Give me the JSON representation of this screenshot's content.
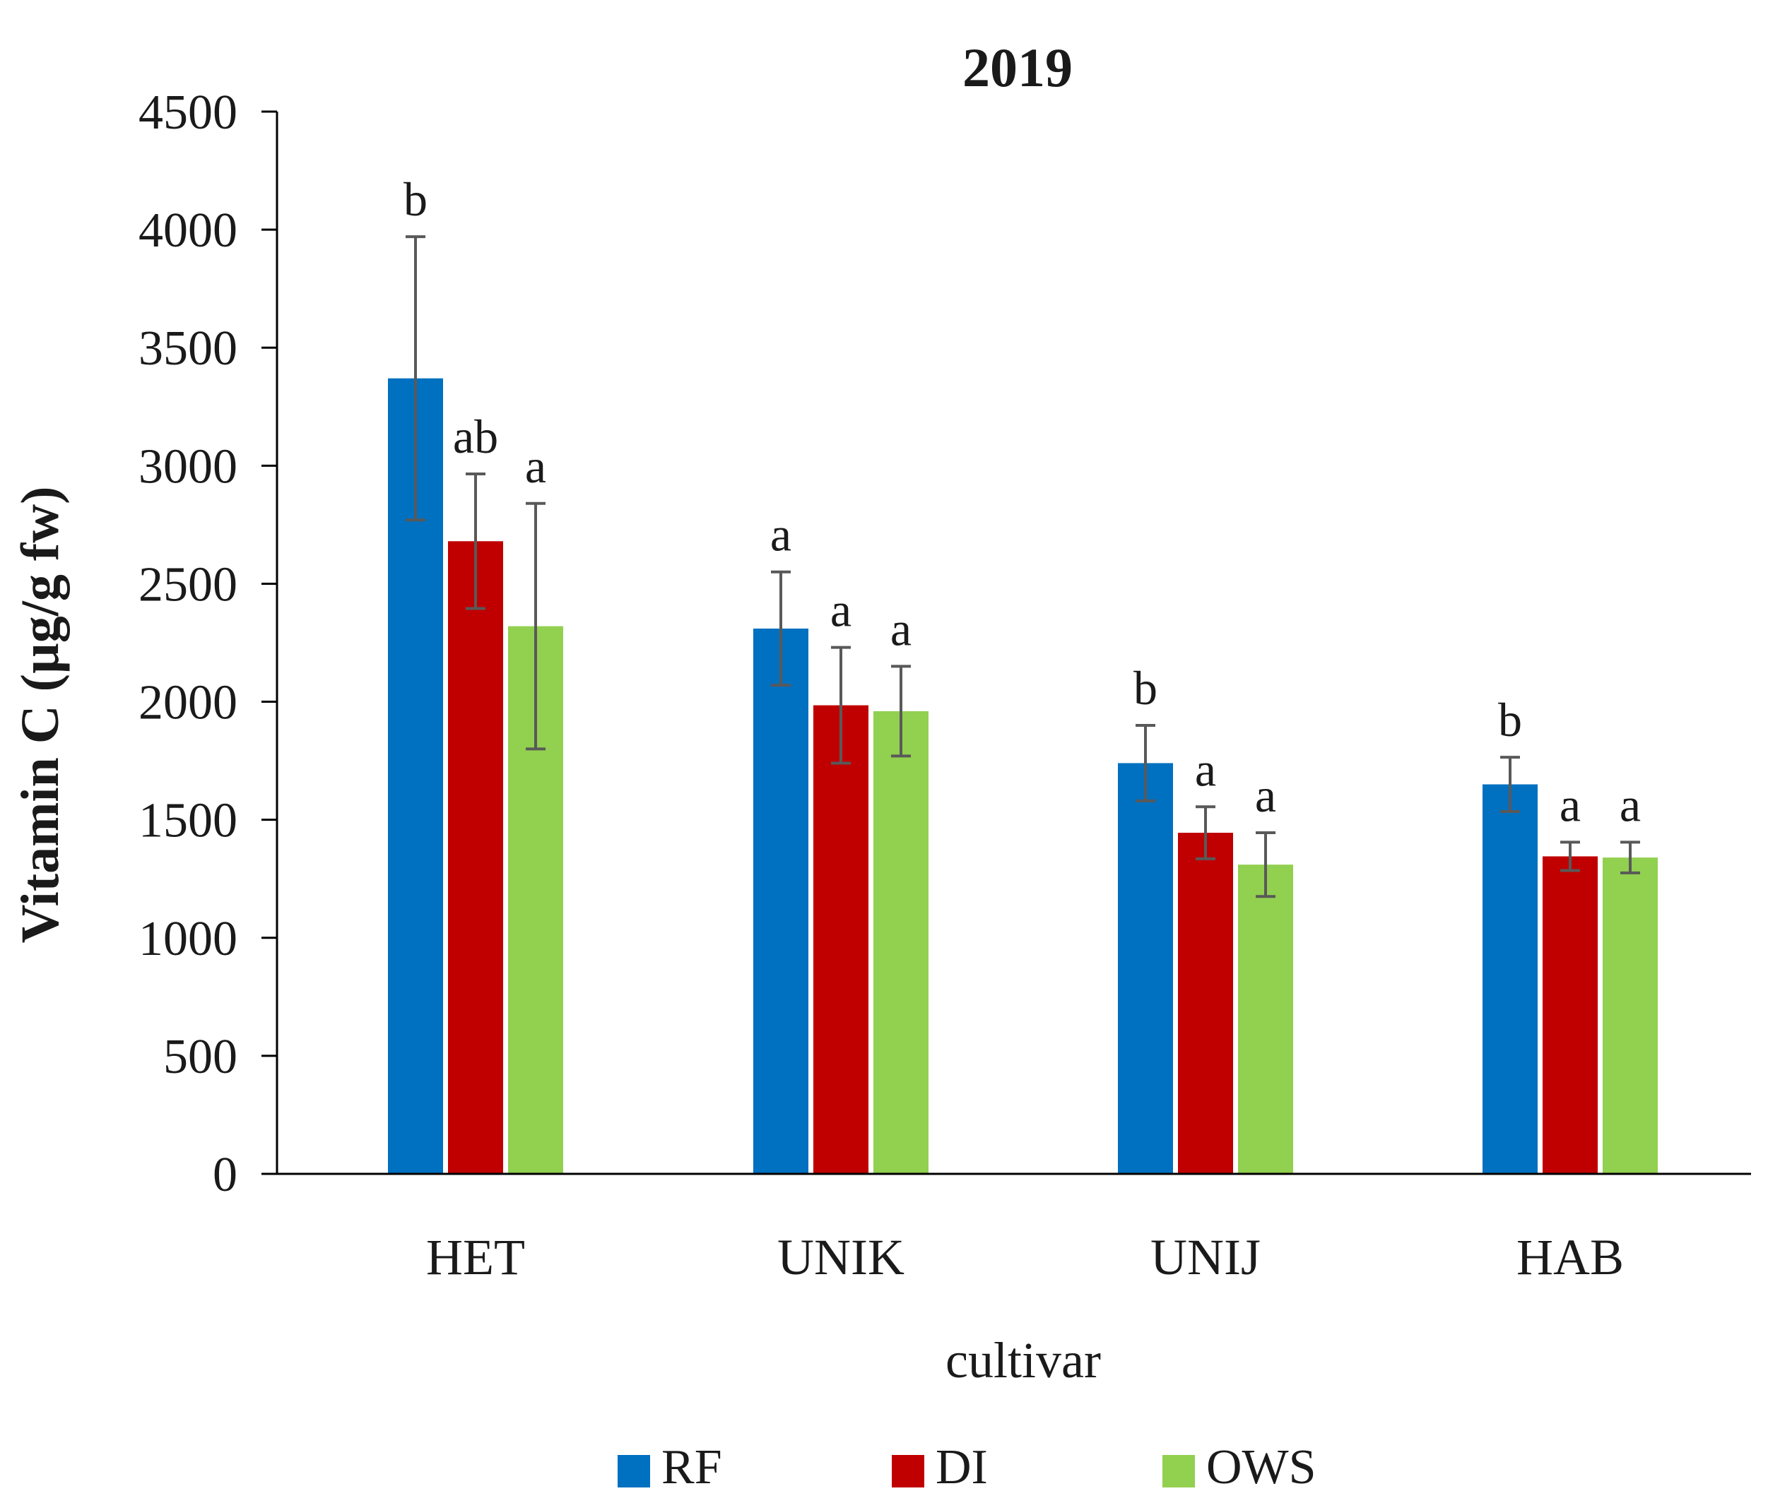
{
  "chart_data": {
    "type": "bar",
    "title": "2019",
    "xlabel": "cultivar",
    "ylabel": "Vitamin C (µg/g fw)",
    "ylim": [
      0,
      4500
    ],
    "yticks": [
      0,
      500,
      1000,
      1500,
      2000,
      2500,
      3000,
      3500,
      4000,
      4500
    ],
    "categories": [
      "HET",
      "UNIK",
      "UNIJ",
      "HAB"
    ],
    "series": [
      {
        "name": "RF",
        "color": "#0070C0",
        "values": [
          3370,
          2310,
          1740,
          1650
        ],
        "errors": [
          600,
          240,
          160,
          115
        ],
        "letters": [
          "b",
          "a",
          "b",
          "b"
        ]
      },
      {
        "name": "DI",
        "color": "#C00000",
        "values": [
          2680,
          1985,
          1445,
          1345
        ],
        "errors": [
          285,
          245,
          110,
          60
        ],
        "letters": [
          "ab",
          "a",
          "a",
          "a"
        ]
      },
      {
        "name": "OWS",
        "color": "#92D050",
        "values": [
          2320,
          1960,
          1310,
          1340
        ],
        "errors": [
          520,
          190,
          135,
          65
        ],
        "letters": [
          "a",
          "a",
          "a",
          "a"
        ]
      }
    ],
    "legend_position": "bottom",
    "grid": false
  }
}
